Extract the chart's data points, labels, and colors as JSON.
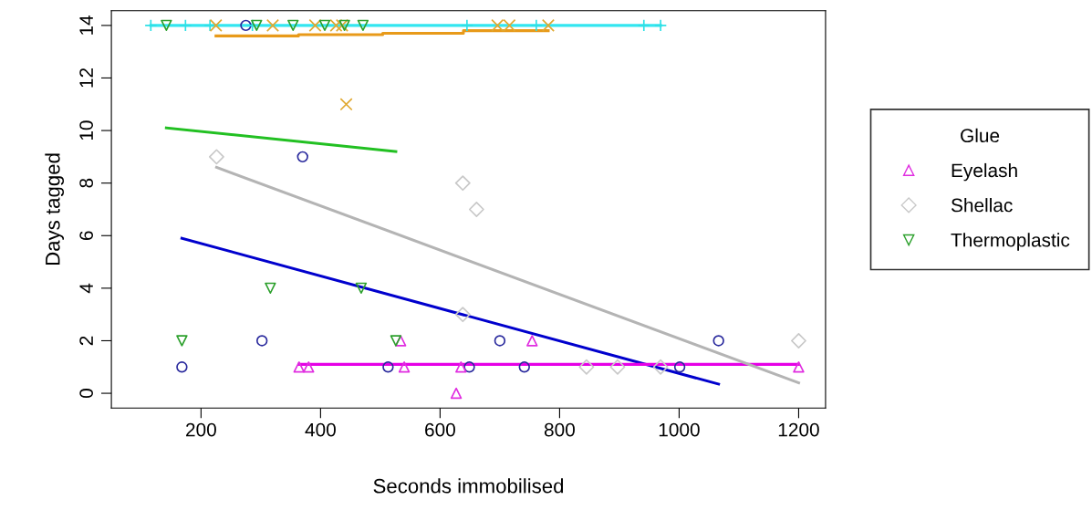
{
  "chart_data": {
    "type": "scatter",
    "xlabel": "Seconds immobilised",
    "ylabel": "Days tagged",
    "legend_title": "Glue",
    "legend": "right",
    "grid": false,
    "xlim": [
      50,
      1245
    ],
    "ylim": [
      -0.56,
      14.56
    ],
    "xticks": [
      200,
      400,
      600,
      800,
      1000,
      1200
    ],
    "yticks": [
      0,
      2,
      4,
      6,
      8,
      10,
      12,
      14
    ],
    "series": [
      {
        "color": "#2b2b9e",
        "marker": "circle",
        "x": [
          168,
          275,
          302,
          370,
          513,
          649,
          700,
          741,
          1001,
          1066
        ],
        "values": [
          1,
          14,
          2,
          9,
          1,
          1,
          2,
          1,
          1,
          2
        ]
      },
      {
        "name": "Eyelash",
        "color": "#e02ee0",
        "marker": "triangle",
        "x": [
          364,
          380,
          534,
          540,
          627,
          635,
          754,
          1200
        ],
        "values": [
          1,
          1,
          2,
          1,
          0,
          1,
          2,
          1
        ]
      },
      {
        "color": "#2ee0e6",
        "marker": "cross",
        "x": [
          116,
          174,
          215,
          286,
          645,
          761,
          941,
          969
        ],
        "values": [
          14,
          14,
          14,
          14,
          14,
          14,
          14,
          14
        ]
      },
      {
        "color": "#e0a830",
        "marker": "x",
        "x": [
          225,
          320,
          391,
          426,
          436,
          443,
          696,
          716,
          781
        ],
        "values": [
          14,
          14,
          14,
          14,
          14,
          11,
          14,
          14,
          14
        ]
      },
      {
        "name": "Shellac",
        "color": "#c8c8c8",
        "marker": "diamond",
        "x": [
          226,
          638,
          661,
          638,
          845,
          897,
          969,
          1200
        ],
        "values": [
          9,
          8,
          7,
          3,
          1,
          1,
          1,
          2
        ]
      },
      {
        "name": "Thermoplastic",
        "color": "#2ca02c",
        "marker": "triangle_down",
        "x": [
          142,
          293,
          354,
          407,
          440,
          471,
          168,
          316,
          468,
          526
        ],
        "values": [
          14,
          14,
          14,
          14,
          14,
          14,
          2,
          4,
          4,
          2
        ]
      },
      {
        "type": "line",
        "color": "#0000cd",
        "marker": "none",
        "x": [
          168,
          1066
        ],
        "values": [
          5.9,
          0.35
        ]
      },
      {
        "type": "line",
        "color": "#e600e6",
        "marker": "none",
        "x": [
          364,
          1200
        ],
        "values": [
          1.1,
          1.1
        ]
      },
      {
        "type": "line",
        "color": "#33e6f0",
        "marker": "none",
        "x": [
          116,
          969
        ],
        "values": [
          14,
          14
        ]
      },
      {
        "type": "line",
        "color": "#e89a1a",
        "marker": "none",
        "x": [
          225,
          363,
          363,
          504,
          504,
          639,
          639,
          781
        ],
        "values": [
          13.6,
          13.6,
          13.65,
          13.65,
          13.7,
          13.7,
          13.8,
          13.8
        ]
      },
      {
        "type": "line",
        "color": "#b4b4b4",
        "marker": "none",
        "x": [
          226,
          1200
        ],
        "values": [
          8.6,
          0.4
        ]
      },
      {
        "type": "line",
        "color": "#22c022",
        "marker": "none",
        "x": [
          142,
          526
        ],
        "values": [
          10.1,
          9.2
        ]
      }
    ]
  }
}
